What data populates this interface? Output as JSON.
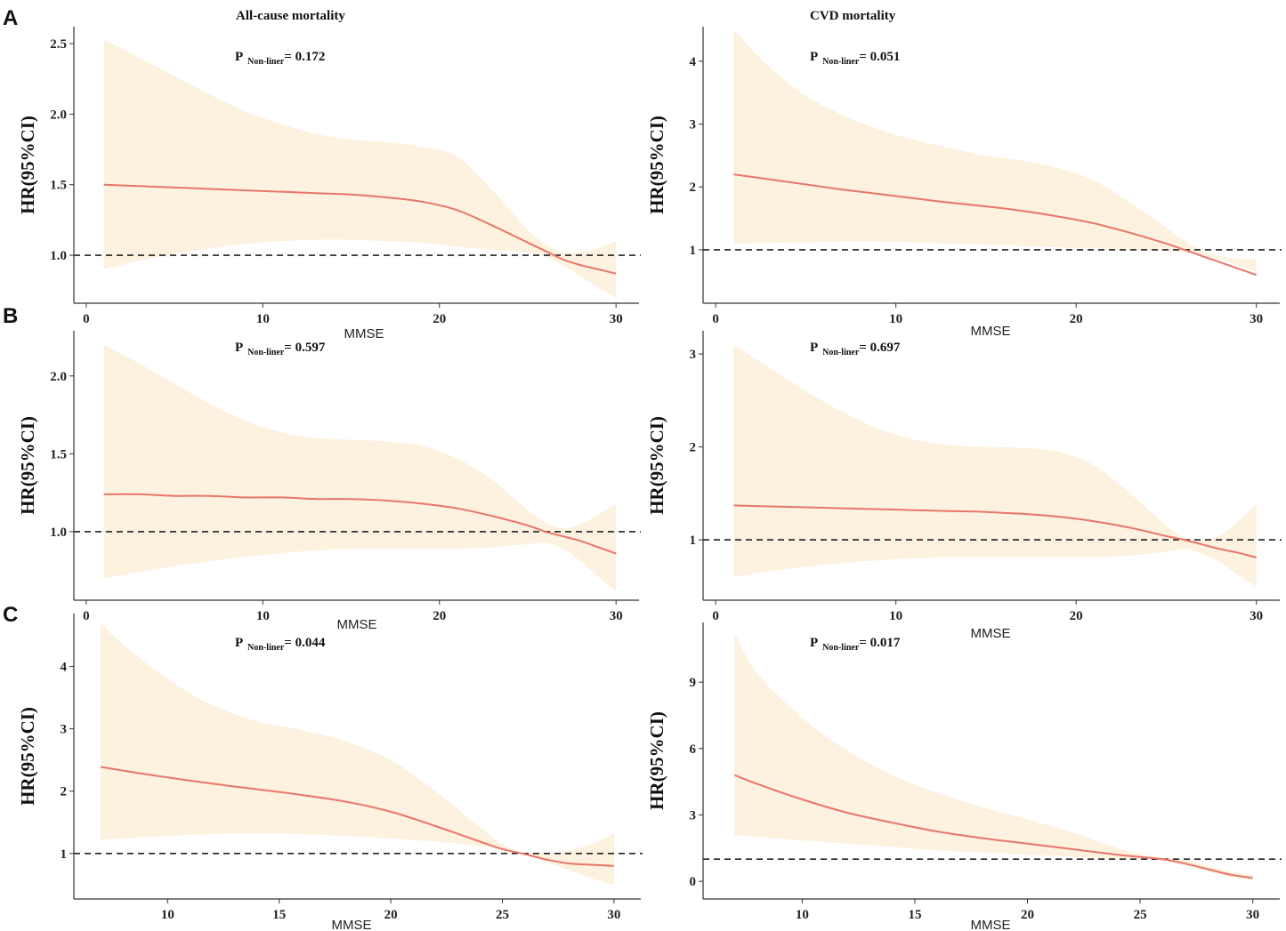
{
  "figure": {
    "panel_labels": [
      "A",
      "B",
      "C"
    ],
    "colors": {
      "band": "#fdf1df",
      "line": "#e8766a",
      "reference": "#222222",
      "axis": "#333333"
    }
  },
  "chart_data": [
    {
      "id": "A-left",
      "row": 0,
      "col": 0,
      "type": "line",
      "title": "All-cause mortality",
      "p_label": "P",
      "p_sub": "Non-liner",
      "p_value": "= 0.172",
      "xlabel": "MMSE",
      "ylabel": "HR(95%CI)",
      "xlim": [
        -0.7,
        31.3
      ],
      "ylim": [
        0.66,
        2.62
      ],
      "xticks": [
        0,
        10,
        20,
        30
      ],
      "yticks": [
        1.0,
        1.5,
        2.0,
        2.5
      ],
      "ytick_labels": [
        "1.0",
        "1.5",
        "2.0",
        "2.5"
      ],
      "reference": 1.0,
      "x": [
        1,
        3,
        5,
        7,
        9,
        11,
        13,
        15,
        17,
        19,
        21,
        23,
        25,
        26,
        27,
        28,
        29,
        30
      ],
      "hr": [
        1.5,
        1.49,
        1.48,
        1.47,
        1.46,
        1.45,
        1.44,
        1.43,
        1.41,
        1.38,
        1.32,
        1.21,
        1.09,
        1.03,
        0.97,
        0.93,
        0.9,
        0.87
      ],
      "lower": [
        0.9,
        0.96,
        1.01,
        1.05,
        1.08,
        1.1,
        1.11,
        1.11,
        1.1,
        1.09,
        1.06,
        1.04,
        1.02,
        0.99,
        0.93,
        0.85,
        0.77,
        0.7
      ],
      "upper": [
        2.53,
        2.4,
        2.27,
        2.14,
        2.02,
        1.93,
        1.86,
        1.82,
        1.8,
        1.77,
        1.7,
        1.46,
        1.18,
        1.08,
        1.02,
        1.02,
        1.05,
        1.1
      ]
    },
    {
      "id": "A-right",
      "row": 0,
      "col": 1,
      "type": "line",
      "title": "CVD mortality",
      "p_label": "P",
      "p_sub": "Non-liner",
      "p_value": "= 0.051",
      "xlabel": "MMSE",
      "ylabel": "HR(95%CI)",
      "xlim": [
        -0.7,
        31.3
      ],
      "ylim": [
        0.15,
        4.55
      ],
      "xticks": [
        0,
        10,
        20,
        30
      ],
      "yticks": [
        1,
        2,
        3,
        4
      ],
      "ytick_labels": [
        "1",
        "2",
        "3",
        "4"
      ],
      "reference": 1.0,
      "x": [
        1,
        3,
        5,
        7,
        9,
        11,
        13,
        15,
        17,
        19,
        21,
        23,
        25,
        26,
        27,
        28,
        29,
        30
      ],
      "hr": [
        2.2,
        2.12,
        2.04,
        1.96,
        1.89,
        1.82,
        1.75,
        1.69,
        1.62,
        1.53,
        1.42,
        1.27,
        1.1,
        1.0,
        0.9,
        0.8,
        0.7,
        0.6
      ],
      "lower": [
        1.1,
        1.11,
        1.12,
        1.13,
        1.13,
        1.12,
        1.1,
        1.08,
        1.06,
        1.04,
        1.02,
        1.0,
        0.98,
        0.96,
        0.92,
        0.85,
        0.75,
        0.65
      ],
      "upper": [
        4.5,
        3.9,
        3.45,
        3.15,
        2.92,
        2.75,
        2.62,
        2.5,
        2.42,
        2.3,
        2.1,
        1.75,
        1.35,
        1.15,
        0.98,
        0.9,
        0.86,
        0.85
      ]
    },
    {
      "id": "B-left",
      "row": 1,
      "col": 0,
      "type": "line",
      "title": "",
      "p_label": "P",
      "p_sub": "Non-liner",
      "p_value": "= 0.597",
      "xlabel": "MMSE",
      "ylabel": "HR(95%CI)",
      "xlim": [
        -0.7,
        31.3
      ],
      "ylim": [
        0.56,
        2.29
      ],
      "xticks": [
        0,
        10,
        20,
        30
      ],
      "yticks": [
        1.0,
        1.5,
        2.0
      ],
      "ytick_labels": [
        "1.0",
        "1.5",
        "2.0"
      ],
      "reference": 1.0,
      "x": [
        1,
        3,
        5,
        7,
        9,
        11,
        13,
        15,
        17,
        19,
        21,
        23,
        25,
        26,
        27,
        28,
        29,
        30
      ],
      "hr": [
        1.24,
        1.24,
        1.23,
        1.23,
        1.22,
        1.22,
        1.21,
        1.21,
        1.2,
        1.18,
        1.15,
        1.1,
        1.04,
        1.0,
        0.97,
        0.94,
        0.9,
        0.86
      ],
      "lower": [
        0.7,
        0.74,
        0.78,
        0.81,
        0.84,
        0.86,
        0.88,
        0.89,
        0.89,
        0.89,
        0.89,
        0.9,
        0.92,
        0.93,
        0.89,
        0.81,
        0.71,
        0.62
      ],
      "upper": [
        2.2,
        2.08,
        1.95,
        1.82,
        1.71,
        1.64,
        1.6,
        1.59,
        1.58,
        1.55,
        1.47,
        1.33,
        1.14,
        1.06,
        1.02,
        1.05,
        1.11,
        1.18
      ]
    },
    {
      "id": "B-right",
      "row": 1,
      "col": 1,
      "type": "line",
      "title": "",
      "p_label": "P",
      "p_sub": "Non-liner",
      "p_value": "= 0.697",
      "xlabel": "MMSE",
      "ylabel": "HR(95%CI)",
      "xlim": [
        -0.7,
        31.3
      ],
      "ylim": [
        0.35,
        3.25
      ],
      "xticks": [
        0,
        10,
        20,
        30
      ],
      "yticks": [
        1,
        2,
        3
      ],
      "ytick_labels": [
        "1",
        "2",
        "3"
      ],
      "reference": 1.0,
      "x": [
        1,
        3,
        5,
        7,
        9,
        11,
        13,
        15,
        17,
        19,
        21,
        23,
        25,
        26,
        27,
        28,
        29,
        30
      ],
      "hr": [
        1.37,
        1.36,
        1.35,
        1.34,
        1.33,
        1.32,
        1.31,
        1.3,
        1.28,
        1.25,
        1.2,
        1.13,
        1.04,
        1.0,
        0.95,
        0.9,
        0.86,
        0.81
      ],
      "lower": [
        0.6,
        0.66,
        0.71,
        0.75,
        0.78,
        0.8,
        0.81,
        0.81,
        0.81,
        0.81,
        0.81,
        0.83,
        0.87,
        0.9,
        0.85,
        0.76,
        0.62,
        0.5
      ],
      "upper": [
        3.1,
        2.85,
        2.6,
        2.38,
        2.2,
        2.08,
        2.02,
        2.0,
        1.99,
        1.95,
        1.8,
        1.5,
        1.15,
        1.02,
        0.99,
        1.05,
        1.2,
        1.38
      ]
    },
    {
      "id": "C-left",
      "row": 2,
      "col": 0,
      "type": "line",
      "title": "",
      "p_label": "P",
      "p_sub": "Non-liner",
      "p_value": "= 0.044",
      "xlabel": "MMSE",
      "ylabel": "HR(95%CI)",
      "xlim": [
        5.8,
        31.2
      ],
      "ylim": [
        0.27,
        4.85
      ],
      "xticks": [
        10,
        15,
        20,
        25,
        30
      ],
      "yticks": [
        1,
        2,
        3,
        4
      ],
      "ytick_labels": [
        "1",
        "2",
        "3",
        "4"
      ],
      "reference": 1.0,
      "x": [
        7,
        8,
        10,
        12,
        14,
        16,
        18,
        20,
        22,
        24,
        25,
        26,
        27,
        28,
        29,
        30
      ],
      "hr": [
        2.39,
        2.33,
        2.22,
        2.12,
        2.03,
        1.94,
        1.83,
        1.67,
        1.44,
        1.19,
        1.07,
        0.99,
        0.9,
        0.84,
        0.82,
        0.8
      ],
      "lower": [
        1.22,
        1.24,
        1.28,
        1.31,
        1.32,
        1.31,
        1.28,
        1.24,
        1.19,
        1.12,
        1.06,
        0.98,
        0.86,
        0.73,
        0.6,
        0.5
      ],
      "upper": [
        4.7,
        4.35,
        3.8,
        3.38,
        3.12,
        2.98,
        2.8,
        2.5,
        2.0,
        1.42,
        1.15,
        1.0,
        1.0,
        1.05,
        1.15,
        1.32
      ]
    },
    {
      "id": "C-right",
      "row": 2,
      "col": 1,
      "type": "line",
      "title": "",
      "p_label": "P",
      "p_sub": "Non-liner",
      "p_value": "= 0.017",
      "xlabel": "MMSE",
      "ylabel": "HR(95%CI)",
      "xlim": [
        5.6,
        31.2
      ],
      "ylim": [
        -0.8,
        11.7
      ],
      "xticks": [
        10,
        15,
        20,
        25,
        30
      ],
      "yticks": [
        0,
        3,
        6,
        9
      ],
      "ytick_labels": [
        "0",
        "3",
        "6",
        "9"
      ],
      "reference": 1.0,
      "x": [
        7,
        8,
        10,
        12,
        14,
        16,
        18,
        20,
        22,
        24,
        25,
        26,
        27,
        28,
        29,
        30
      ],
      "hr": [
        4.8,
        4.4,
        3.7,
        3.1,
        2.65,
        2.25,
        1.95,
        1.7,
        1.45,
        1.2,
        1.1,
        1.0,
        0.8,
        0.55,
        0.3,
        0.15
      ],
      "lower": [
        2.1,
        2.0,
        1.85,
        1.7,
        1.55,
        1.4,
        1.3,
        1.2,
        1.1,
        1.0,
        0.97,
        0.93,
        0.7,
        0.45,
        0.2,
        0.05
      ],
      "upper": [
        11.2,
        9.4,
        7.4,
        5.9,
        4.8,
        4.0,
        3.35,
        2.8,
        2.2,
        1.5,
        1.22,
        1.07,
        0.95,
        0.7,
        0.45,
        0.28
      ]
    }
  ]
}
